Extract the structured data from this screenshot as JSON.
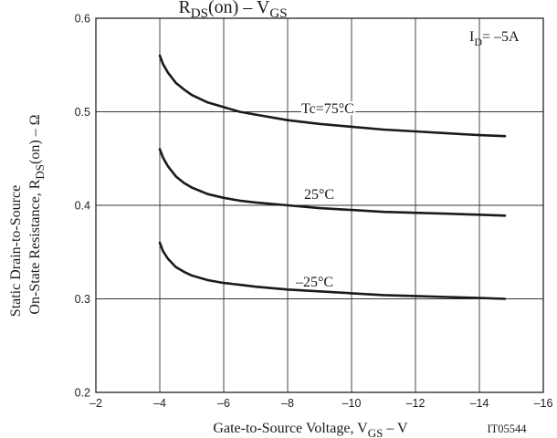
{
  "chart_data": {
    "type": "line",
    "title": {
      "main": "R",
      "sub1": "DS",
      "mid": "(on)  –  V",
      "sub2": "GS"
    },
    "xlabel": {
      "pre": "Gate-to-Source Voltage, V",
      "sub": "GS",
      "post": "  –  V"
    },
    "ylabel": {
      "line1": "Static Drain-to-Source",
      "line2_pre": "On-State Resistance, R",
      "line2_sub": "DS",
      "line2_post": "(on)  –  Ω"
    },
    "condition": {
      "pre": "I",
      "sub": "D",
      "post": "= –5A"
    },
    "figure_id": "IT05544",
    "xlim": [
      -2,
      -16
    ],
    "ylim": [
      0.2,
      0.6
    ],
    "grid": true,
    "x_ticks": [
      "–2",
      "–4",
      "–6",
      "–8",
      "–10",
      "–12",
      "–14",
      "–16"
    ],
    "y_ticks": [
      "0.2",
      "0.3",
      "0.4",
      "0.5",
      "0.6"
    ],
    "series": [
      {
        "name": "Tc=75°C",
        "x": [
          -4,
          -4.1,
          -4.25,
          -4.5,
          -4.75,
          -5,
          -5.5,
          -6,
          -6.5,
          -7,
          -8,
          -9,
          -10,
          -11,
          -12,
          -13,
          -14,
          -14.8
        ],
        "y": [
          0.56,
          0.551,
          0.542,
          0.531,
          0.524,
          0.518,
          0.51,
          0.505,
          0.5,
          0.497,
          0.491,
          0.487,
          0.484,
          0.481,
          0.479,
          0.477,
          0.475,
          0.474
        ]
      },
      {
        "name": "25°C",
        "x": [
          -4,
          -4.1,
          -4.25,
          -4.5,
          -4.75,
          -5,
          -5.5,
          -6,
          -6.5,
          -7,
          -8,
          -9,
          -10,
          -11,
          -12,
          -13,
          -14,
          -14.8
        ],
        "y": [
          0.46,
          0.451,
          0.442,
          0.431,
          0.424,
          0.419,
          0.412,
          0.408,
          0.405,
          0.403,
          0.4,
          0.397,
          0.395,
          0.393,
          0.392,
          0.391,
          0.39,
          0.389
        ]
      },
      {
        "name": "–25°C",
        "x": [
          -4,
          -4.1,
          -4.25,
          -4.5,
          -4.75,
          -5,
          -5.5,
          -6,
          -6.5,
          -7,
          -8,
          -9,
          -10,
          -11,
          -12,
          -13,
          -14,
          -14.8
        ],
        "y": [
          0.36,
          0.351,
          0.343,
          0.334,
          0.329,
          0.325,
          0.32,
          0.317,
          0.315,
          0.313,
          0.31,
          0.308,
          0.306,
          0.304,
          0.303,
          0.302,
          0.301,
          0.3
        ]
      }
    ]
  }
}
